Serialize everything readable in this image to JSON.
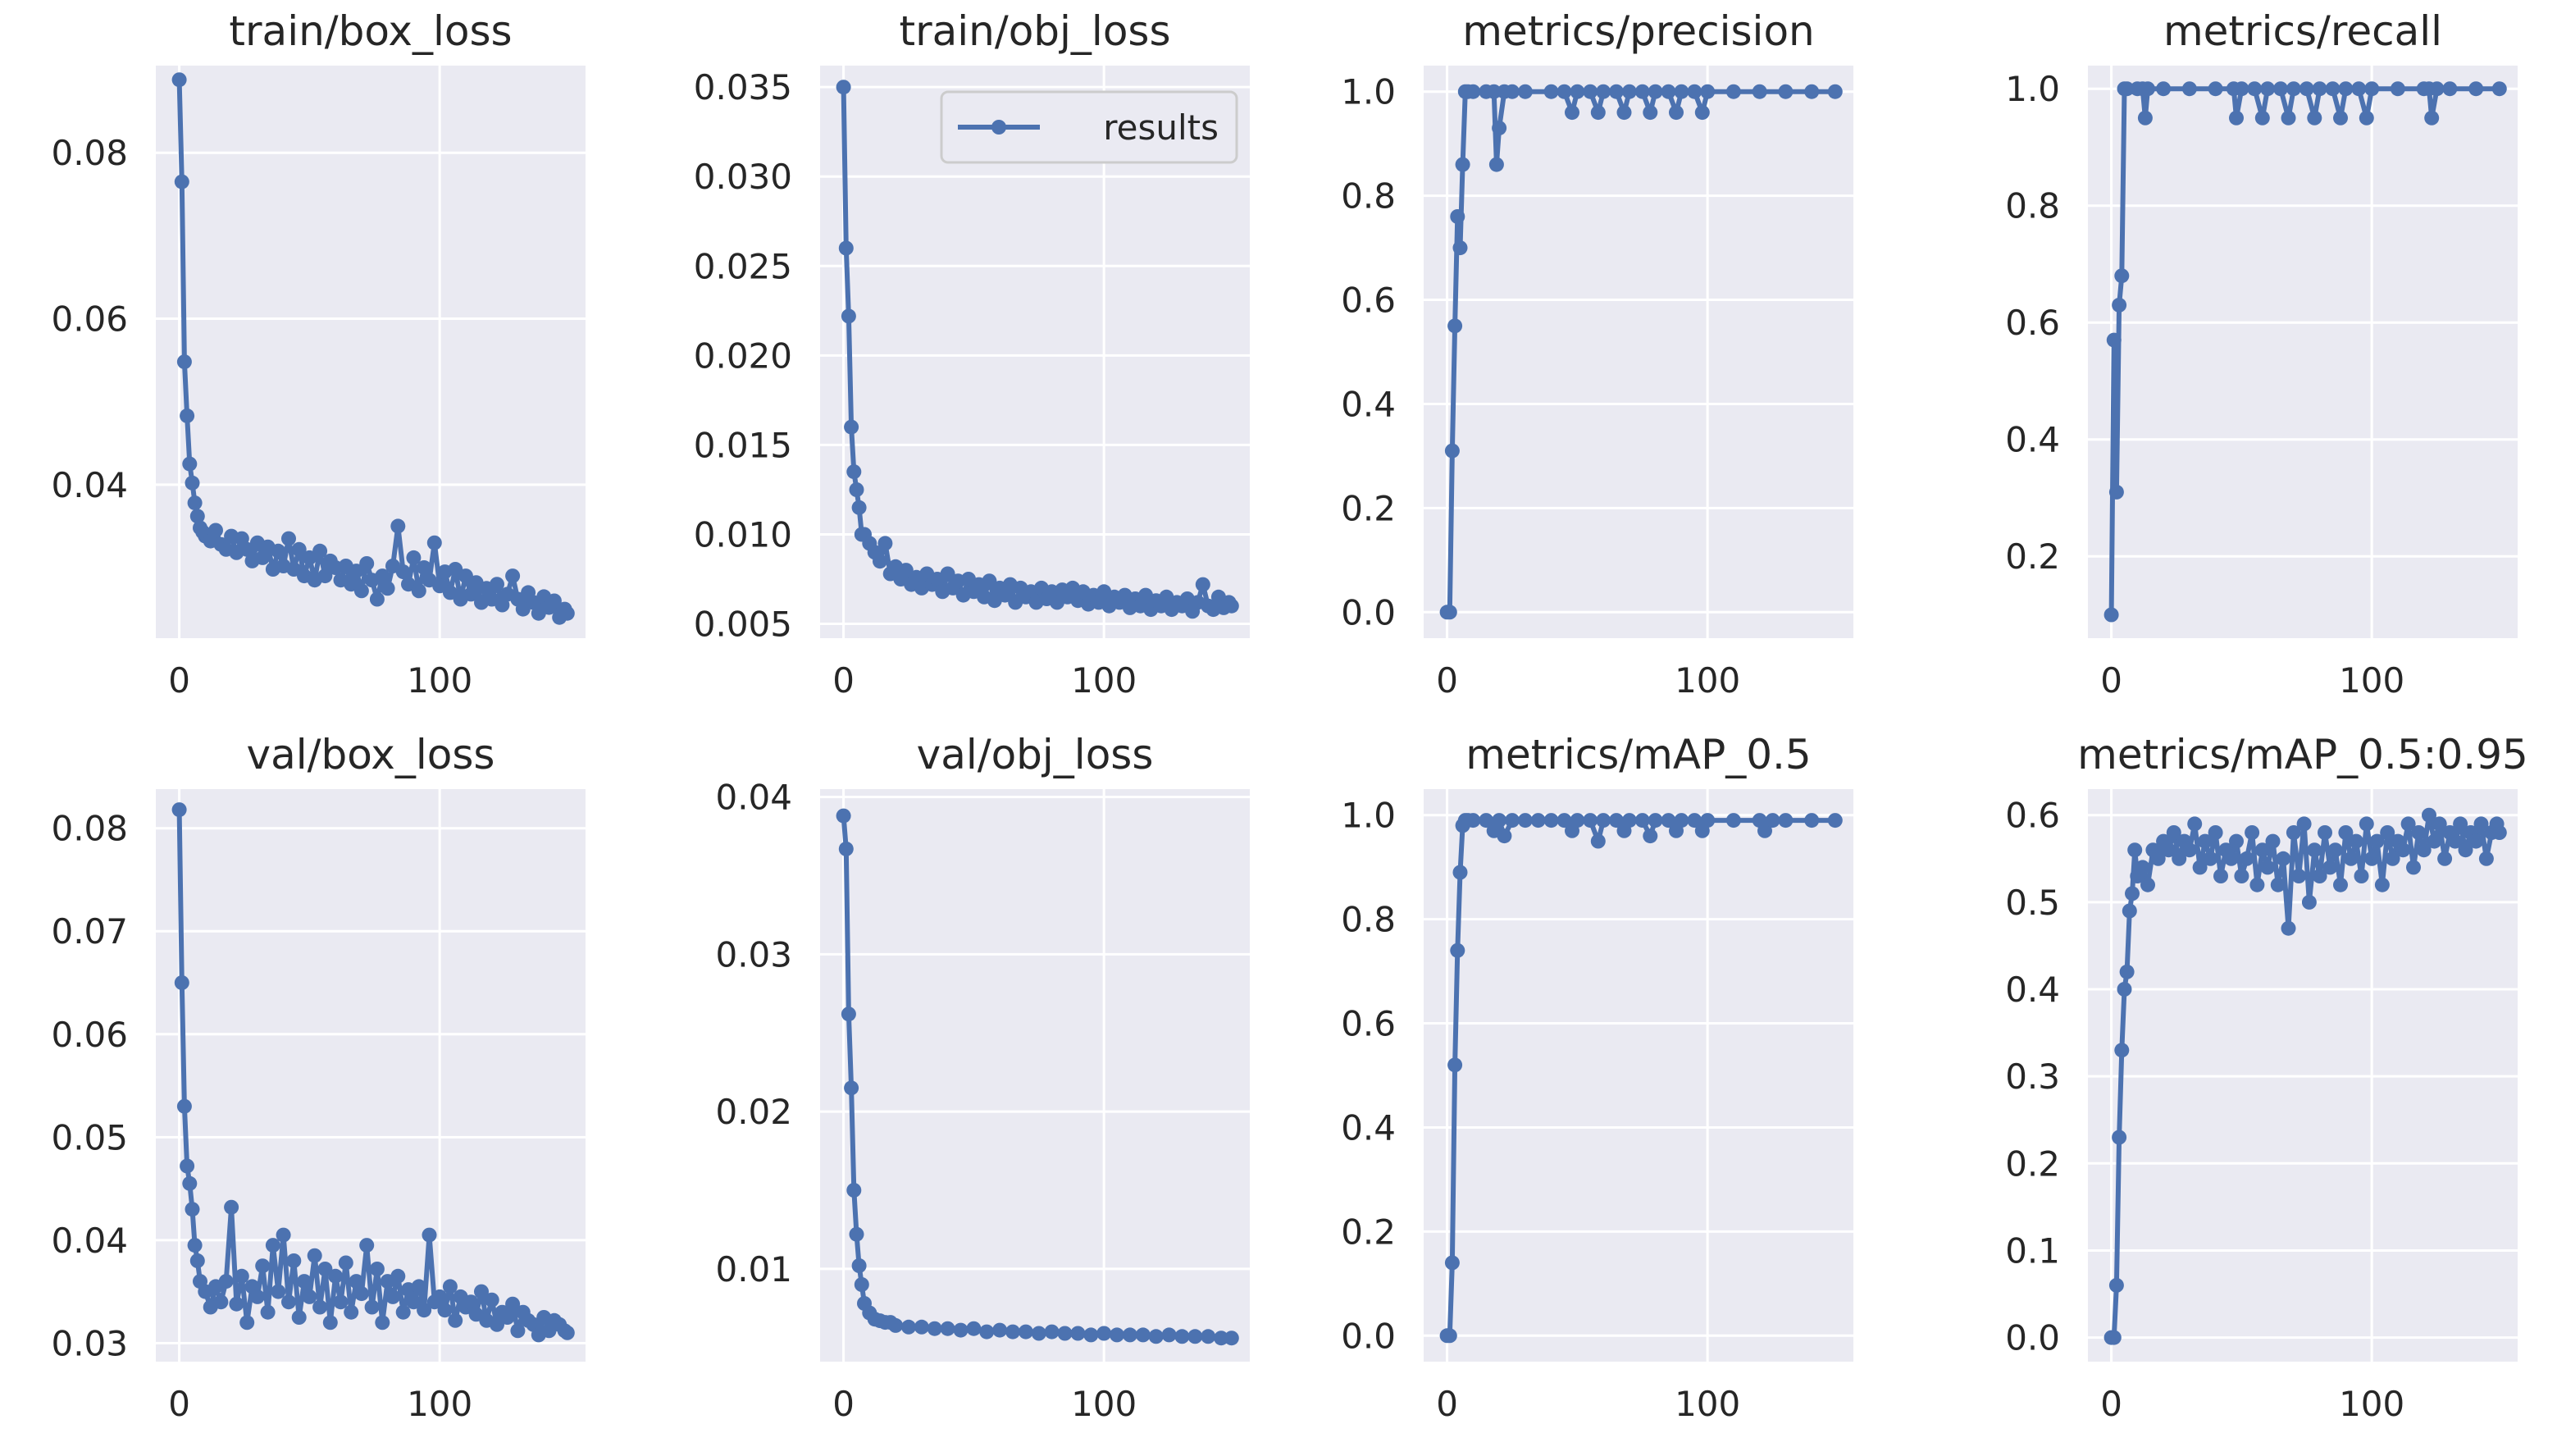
{
  "figure": {
    "legend_label": "results",
    "series_color": "#4c72b0",
    "plot_bg": "#eaeaf2"
  },
  "chart_data": [
    {
      "type": "line",
      "title": "train/box_loss",
      "series_name": "results",
      "xlim": [
        -9,
        156
      ],
      "ylim": [
        0.0215,
        0.0905
      ],
      "xticks": [
        0,
        100
      ],
      "xtick_labels": [
        "0",
        "100"
      ],
      "yticks": [
        0.04,
        0.06,
        0.08
      ],
      "ytick_labels": [
        "0.04",
        "0.06",
        "0.08"
      ],
      "x": [
        0,
        1,
        2,
        3,
        4,
        5,
        6,
        7,
        8,
        9,
        10,
        12,
        14,
        16,
        18,
        20,
        22,
        24,
        26,
        28,
        30,
        32,
        34,
        36,
        38,
        40,
        42,
        44,
        46,
        48,
        50,
        52,
        54,
        56,
        58,
        60,
        62,
        64,
        66,
        68,
        70,
        72,
        74,
        76,
        78,
        80,
        82,
        84,
        86,
        88,
        90,
        92,
        94,
        96,
        98,
        100,
        102,
        104,
        106,
        108,
        110,
        112,
        114,
        116,
        118,
        120,
        122,
        124,
        126,
        128,
        130,
        132,
        134,
        136,
        138,
        140,
        142,
        144,
        146,
        148,
        149
      ],
      "y": [
        0.0888,
        0.0765,
        0.0548,
        0.0483,
        0.0425,
        0.0402,
        0.0378,
        0.0362,
        0.0348,
        0.0343,
        0.0338,
        0.0332,
        0.0345,
        0.0328,
        0.0322,
        0.0338,
        0.0318,
        0.0335,
        0.0322,
        0.0308,
        0.033,
        0.0312,
        0.0325,
        0.0298,
        0.032,
        0.0302,
        0.0335,
        0.0298,
        0.0322,
        0.029,
        0.0312,
        0.0285,
        0.032,
        0.029,
        0.0308,
        0.03,
        0.0285,
        0.0302,
        0.028,
        0.0296,
        0.0272,
        0.0305,
        0.0285,
        0.0262,
        0.029,
        0.0275,
        0.0302,
        0.035,
        0.0295,
        0.028,
        0.0312,
        0.0272,
        0.03,
        0.0285,
        0.033,
        0.0278,
        0.0295,
        0.027,
        0.0298,
        0.0262,
        0.029,
        0.0268,
        0.0282,
        0.0258,
        0.0275,
        0.0262,
        0.028,
        0.0255,
        0.0268,
        0.029,
        0.0262,
        0.025,
        0.027,
        0.0258,
        0.0245,
        0.0265,
        0.0252,
        0.026,
        0.024,
        0.025,
        0.0245
      ]
    },
    {
      "type": "line",
      "title": "train/obj_loss",
      "series_name": "results",
      "xlim": [
        -9,
        156
      ],
      "ylim": [
        0.0042,
        0.0362
      ],
      "xticks": [
        0,
        100
      ],
      "xtick_labels": [
        "0",
        "100"
      ],
      "yticks": [
        0.005,
        0.01,
        0.015,
        0.02,
        0.025,
        0.03,
        0.035
      ],
      "ytick_labels": [
        "0.005",
        "0.010",
        "0.015",
        "0.020",
        "0.025",
        "0.030",
        "0.035"
      ],
      "x": [
        0,
        1,
        2,
        3,
        4,
        5,
        6,
        7,
        8,
        10,
        12,
        14,
        16,
        18,
        20,
        22,
        24,
        26,
        28,
        30,
        32,
        34,
        36,
        38,
        40,
        42,
        44,
        46,
        48,
        50,
        52,
        54,
        56,
        58,
        60,
        62,
        64,
        66,
        68,
        70,
        72,
        74,
        76,
        78,
        80,
        82,
        84,
        86,
        88,
        90,
        92,
        94,
        96,
        98,
        100,
        102,
        104,
        106,
        108,
        110,
        112,
        114,
        116,
        118,
        120,
        122,
        124,
        126,
        128,
        130,
        132,
        134,
        136,
        138,
        140,
        142,
        144,
        146,
        148,
        149
      ],
      "y": [
        0.035,
        0.026,
        0.0222,
        0.016,
        0.0135,
        0.0125,
        0.0115,
        0.01,
        0.01,
        0.0095,
        0.009,
        0.0085,
        0.0095,
        0.0078,
        0.0082,
        0.0075,
        0.008,
        0.0072,
        0.0076,
        0.007,
        0.0078,
        0.0072,
        0.0075,
        0.0068,
        0.0078,
        0.007,
        0.0074,
        0.0066,
        0.0075,
        0.0068,
        0.0072,
        0.0065,
        0.0074,
        0.0063,
        0.007,
        0.0066,
        0.0072,
        0.0062,
        0.007,
        0.0065,
        0.0068,
        0.0062,
        0.007,
        0.0064,
        0.0068,
        0.0062,
        0.0069,
        0.0065,
        0.007,
        0.0063,
        0.0068,
        0.0061,
        0.0066,
        0.0062,
        0.0068,
        0.006,
        0.0065,
        0.0062,
        0.0066,
        0.0059,
        0.0064,
        0.006,
        0.0066,
        0.0058,
        0.0063,
        0.006,
        0.0065,
        0.0058,
        0.0062,
        0.006,
        0.0064,
        0.0057,
        0.0062,
        0.0072,
        0.006,
        0.0058,
        0.0065,
        0.0059,
        0.0062,
        0.006
      ]
    },
    {
      "type": "line",
      "title": "metrics/precision",
      "series_name": "results",
      "xlim": [
        -9,
        156
      ],
      "ylim": [
        -0.05,
        1.05
      ],
      "xticks": [
        0,
        100
      ],
      "xtick_labels": [
        "0",
        "100"
      ],
      "yticks": [
        0.0,
        0.2,
        0.4,
        0.6,
        0.8,
        1.0
      ],
      "ytick_labels": [
        "0.0",
        "0.2",
        "0.4",
        "0.6",
        "0.8",
        "1.0"
      ],
      "x": [
        0,
        1,
        2,
        3,
        4,
        5,
        6,
        7,
        8,
        10,
        15,
        18,
        19,
        20,
        22,
        25,
        30,
        40,
        45,
        48,
        50,
        55,
        58,
        60,
        65,
        68,
        70,
        75,
        78,
        80,
        85,
        88,
        90,
        95,
        98,
        100,
        110,
        120,
        130,
        140,
        149
      ],
      "y": [
        0.0,
        0.0,
        0.31,
        0.55,
        0.76,
        0.7,
        0.86,
        1.0,
        1.0,
        1.0,
        1.0,
        1.0,
        0.86,
        0.93,
        1.0,
        1.0,
        1.0,
        1.0,
        1.0,
        0.96,
        1.0,
        1.0,
        0.96,
        1.0,
        1.0,
        0.96,
        1.0,
        1.0,
        0.96,
        1.0,
        1.0,
        0.96,
        1.0,
        1.0,
        0.96,
        1.0,
        1.0,
        1.0,
        1.0,
        1.0,
        1.0
      ]
    },
    {
      "type": "line",
      "title": "metrics/recall",
      "series_name": "results",
      "xlim": [
        -9,
        156
      ],
      "ylim": [
        0.06,
        1.0396
      ],
      "xticks": [
        0,
        100
      ],
      "xtick_labels": [
        "0",
        "100"
      ],
      "yticks": [
        0.2,
        0.4,
        0.6,
        0.8,
        1.0
      ],
      "ytick_labels": [
        "0.2",
        "0.4",
        "0.6",
        "0.8",
        "1.0"
      ],
      "x": [
        0,
        1,
        2,
        3,
        4,
        5,
        6,
        10,
        12,
        13,
        14,
        20,
        30,
        40,
        47,
        48,
        50,
        55,
        58,
        60,
        65,
        68,
        70,
        75,
        78,
        80,
        85,
        88,
        90,
        95,
        98,
        100,
        110,
        120,
        122,
        123,
        125,
        130,
        140,
        149
      ],
      "y": [
        0.1,
        0.57,
        0.31,
        0.63,
        0.68,
        1.0,
        1.0,
        1.0,
        1.0,
        0.95,
        1.0,
        1.0,
        1.0,
        1.0,
        1.0,
        0.95,
        1.0,
        1.0,
        0.95,
        1.0,
        1.0,
        0.95,
        1.0,
        1.0,
        0.95,
        1.0,
        1.0,
        0.95,
        1.0,
        1.0,
        0.95,
        1.0,
        1.0,
        1.0,
        1.0,
        0.95,
        1.0,
        1.0,
        1.0,
        1.0
      ]
    },
    {
      "type": "line",
      "title": "val/box_loss",
      "series_name": "results",
      "xlim": [
        -9,
        156
      ],
      "ylim": [
        0.0282,
        0.0838
      ],
      "xticks": [
        0,
        100
      ],
      "xtick_labels": [
        "0",
        "100"
      ],
      "yticks": [
        0.03,
        0.04,
        0.05,
        0.06,
        0.07,
        0.08
      ],
      "ytick_labels": [
        "0.03",
        "0.04",
        "0.05",
        "0.06",
        "0.07",
        "0.08"
      ],
      "x": [
        0,
        1,
        2,
        3,
        4,
        5,
        6,
        7,
        8,
        10,
        12,
        14,
        16,
        18,
        20,
        22,
        24,
        26,
        28,
        30,
        32,
        34,
        36,
        38,
        40,
        42,
        44,
        46,
        48,
        50,
        52,
        54,
        56,
        58,
        60,
        62,
        64,
        66,
        68,
        70,
        72,
        74,
        76,
        78,
        80,
        82,
        84,
        86,
        88,
        90,
        92,
        94,
        96,
        98,
        100,
        102,
        104,
        106,
        108,
        110,
        112,
        114,
        116,
        118,
        120,
        122,
        124,
        126,
        128,
        130,
        132,
        134,
        136,
        138,
        140,
        142,
        144,
        146,
        148,
        149
      ],
      "y": [
        0.0818,
        0.065,
        0.053,
        0.0472,
        0.0455,
        0.043,
        0.0395,
        0.038,
        0.036,
        0.035,
        0.0335,
        0.0355,
        0.034,
        0.036,
        0.0432,
        0.0338,
        0.0365,
        0.032,
        0.0355,
        0.0345,
        0.0375,
        0.033,
        0.0395,
        0.035,
        0.0405,
        0.034,
        0.038,
        0.0325,
        0.036,
        0.0345,
        0.0385,
        0.0335,
        0.0372,
        0.032,
        0.0365,
        0.034,
        0.0378,
        0.033,
        0.036,
        0.0348,
        0.0395,
        0.0335,
        0.0372,
        0.032,
        0.036,
        0.0345,
        0.0365,
        0.033,
        0.0352,
        0.034,
        0.0355,
        0.0332,
        0.0405,
        0.034,
        0.0345,
        0.0332,
        0.0355,
        0.0322,
        0.0345,
        0.0335,
        0.034,
        0.0328,
        0.035,
        0.0322,
        0.0342,
        0.0318,
        0.033,
        0.0325,
        0.0338,
        0.0312,
        0.033,
        0.0322,
        0.0318,
        0.0308,
        0.0325,
        0.0312,
        0.0322,
        0.0318,
        0.0312,
        0.031
      ]
    },
    {
      "type": "line",
      "title": "val/obj_loss",
      "series_name": "results",
      "xlim": [
        -9,
        156
      ],
      "ylim": [
        0.0041,
        0.0405
      ],
      "xticks": [
        0,
        100
      ],
      "xtick_labels": [
        "0",
        "100"
      ],
      "yticks": [
        0.01,
        0.02,
        0.03,
        0.04
      ],
      "ytick_labels": [
        "0.01",
        "0.02",
        "0.03",
        "0.04"
      ],
      "x": [
        0,
        1,
        2,
        3,
        4,
        5,
        6,
        7,
        8,
        10,
        12,
        14,
        16,
        18,
        20,
        25,
        30,
        35,
        40,
        45,
        50,
        55,
        60,
        65,
        70,
        75,
        80,
        85,
        90,
        95,
        100,
        105,
        110,
        115,
        120,
        125,
        130,
        135,
        140,
        145,
        149
      ],
      "y": [
        0.0388,
        0.0367,
        0.0262,
        0.0215,
        0.015,
        0.0122,
        0.0102,
        0.009,
        0.0078,
        0.0072,
        0.0068,
        0.0067,
        0.0066,
        0.0066,
        0.0064,
        0.0063,
        0.0063,
        0.0062,
        0.0062,
        0.0061,
        0.0062,
        0.006,
        0.0061,
        0.006,
        0.006,
        0.0059,
        0.006,
        0.0059,
        0.0059,
        0.0058,
        0.0059,
        0.0058,
        0.0058,
        0.0058,
        0.0057,
        0.0058,
        0.0057,
        0.0057,
        0.0057,
        0.0056,
        0.0056
      ]
    },
    {
      "type": "line",
      "title": "metrics/mAP_0.5",
      "series_name": "results",
      "xlim": [
        -9,
        156
      ],
      "ylim": [
        -0.05,
        1.05
      ],
      "xticks": [
        0,
        100
      ],
      "xtick_labels": [
        "0",
        "100"
      ],
      "yticks": [
        0.0,
        0.2,
        0.4,
        0.6,
        0.8,
        1.0
      ],
      "ytick_labels": [
        "0.0",
        "0.2",
        "0.4",
        "0.6",
        "0.8",
        "1.0"
      ],
      "x": [
        0,
        1,
        2,
        3,
        4,
        5,
        6,
        7,
        8,
        10,
        15,
        18,
        20,
        22,
        25,
        30,
        35,
        40,
        45,
        48,
        50,
        55,
        58,
        60,
        65,
        68,
        70,
        75,
        78,
        80,
        85,
        88,
        90,
        95,
        98,
        100,
        110,
        120,
        122,
        125,
        130,
        140,
        149
      ],
      "y": [
        0.0,
        0.0,
        0.14,
        0.52,
        0.74,
        0.89,
        0.98,
        0.99,
        0.99,
        0.99,
        0.99,
        0.97,
        0.99,
        0.96,
        0.99,
        0.99,
        0.99,
        0.99,
        0.99,
        0.97,
        0.99,
        0.99,
        0.95,
        0.99,
        0.99,
        0.97,
        0.99,
        0.99,
        0.96,
        0.99,
        0.99,
        0.97,
        0.99,
        0.99,
        0.97,
        0.99,
        0.99,
        0.99,
        0.97,
        0.99,
        0.99,
        0.99,
        0.99
      ]
    },
    {
      "type": "line",
      "title": "metrics/mAP_0.5:0.95",
      "series_name": "results",
      "xlim": [
        -9,
        156
      ],
      "ylim": [
        -0.0277,
        0.6299
      ],
      "xticks": [
        0,
        100
      ],
      "xtick_labels": [
        "0",
        "100"
      ],
      "yticks": [
        0.0,
        0.1,
        0.2,
        0.3,
        0.4,
        0.5,
        0.6
      ],
      "ytick_labels": [
        "0.0",
        "0.1",
        "0.2",
        "0.3",
        "0.4",
        "0.5",
        "0.6"
      ],
      "x": [
        0,
        1,
        2,
        3,
        4,
        5,
        6,
        7,
        8,
        9,
        10,
        12,
        14,
        16,
        18,
        20,
        22,
        24,
        26,
        28,
        30,
        32,
        34,
        36,
        38,
        40,
        42,
        44,
        46,
        48,
        50,
        52,
        54,
        56,
        58,
        60,
        62,
        64,
        66,
        68,
        70,
        72,
        74,
        76,
        78,
        80,
        82,
        84,
        86,
        88,
        90,
        92,
        94,
        96,
        98,
        100,
        102,
        104,
        106,
        108,
        110,
        112,
        114,
        116,
        118,
        120,
        122,
        124,
        126,
        128,
        130,
        132,
        134,
        136,
        138,
        140,
        142,
        144,
        146,
        148,
        149
      ],
      "y": [
        0.0,
        0.0,
        0.06,
        0.23,
        0.33,
        0.4,
        0.42,
        0.49,
        0.51,
        0.56,
        0.53,
        0.54,
        0.52,
        0.56,
        0.55,
        0.57,
        0.56,
        0.58,
        0.55,
        0.57,
        0.56,
        0.59,
        0.54,
        0.57,
        0.55,
        0.58,
        0.53,
        0.56,
        0.55,
        0.57,
        0.53,
        0.55,
        0.58,
        0.52,
        0.56,
        0.54,
        0.57,
        0.52,
        0.55,
        0.47,
        0.58,
        0.53,
        0.59,
        0.5,
        0.56,
        0.53,
        0.58,
        0.54,
        0.56,
        0.52,
        0.58,
        0.55,
        0.57,
        0.53,
        0.59,
        0.55,
        0.57,
        0.52,
        0.58,
        0.55,
        0.57,
        0.56,
        0.59,
        0.54,
        0.58,
        0.56,
        0.6,
        0.57,
        0.59,
        0.55,
        0.58,
        0.57,
        0.59,
        0.56,
        0.58,
        0.57,
        0.59,
        0.55,
        0.58,
        0.59,
        0.58
      ]
    }
  ]
}
